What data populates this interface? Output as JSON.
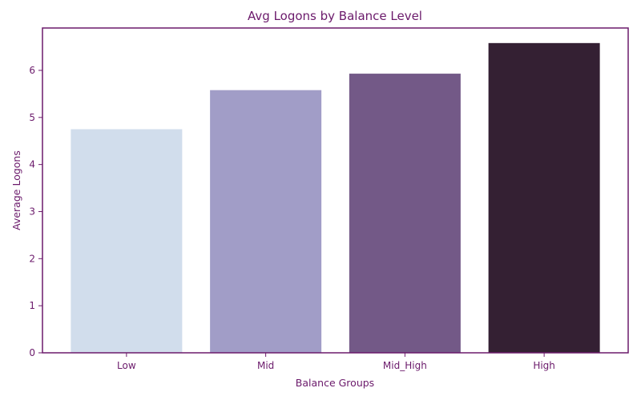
{
  "chart_data": {
    "type": "bar",
    "title": "Avg Logons by Balance Level",
    "xlabel": "Balance Groups",
    "ylabel": "Average Logons",
    "categories": [
      "Low",
      "Mid",
      "Mid_High",
      "High"
    ],
    "values": [
      4.75,
      5.58,
      5.93,
      6.58
    ],
    "bar_colors": [
      "#d1ddec",
      "#a19dc7",
      "#735987",
      "#342033"
    ],
    "ylim": [
      0,
      6.9
    ],
    "yticks": [
      "0",
      "1",
      "2",
      "3",
      "4",
      "5",
      "6"
    ],
    "grid": false,
    "legend": "none"
  },
  "colors": {
    "accent": "#6b1a6b"
  }
}
